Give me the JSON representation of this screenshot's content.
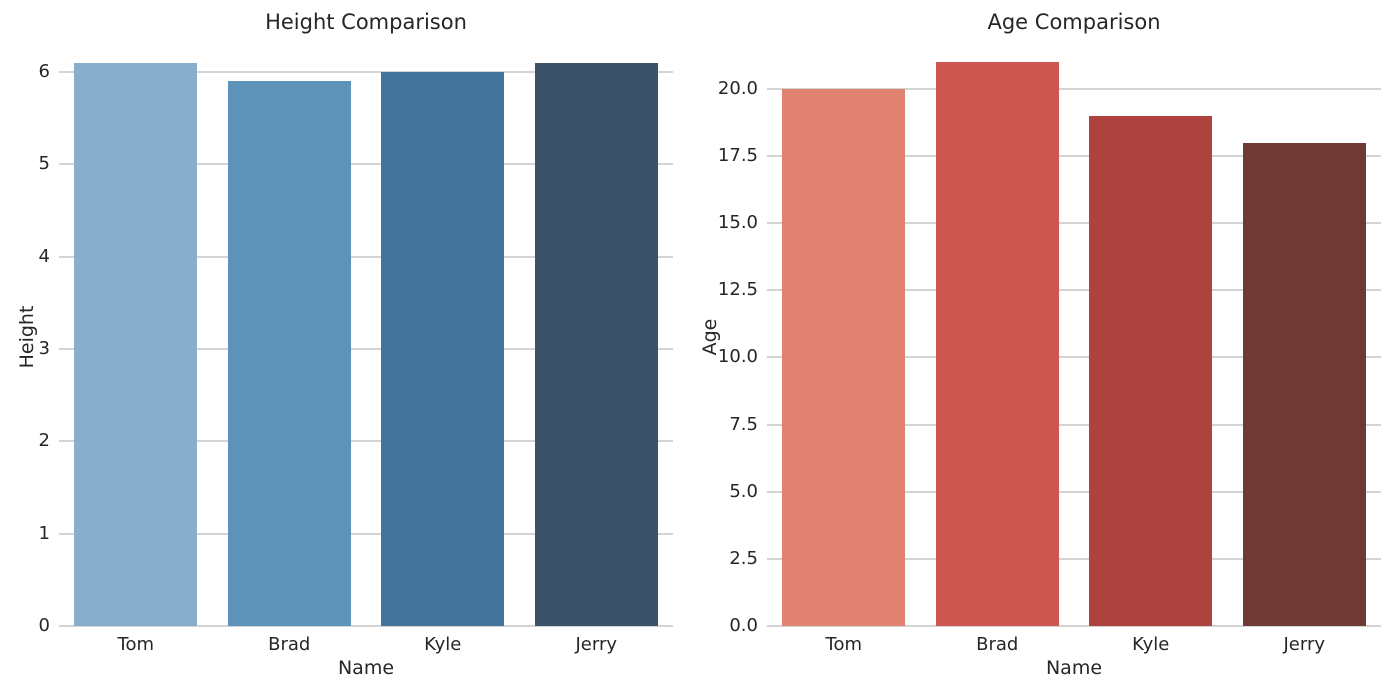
{
  "figure": {
    "background": "#ffffff",
    "text_color": "#262626",
    "grid_color": "#d4d4d4"
  },
  "chart_data": [
    {
      "type": "bar",
      "title": "Height Comparison",
      "xlabel": "Name",
      "ylabel": "Height",
      "categories": [
        "Tom",
        "Brad",
        "Kyle",
        "Jerry"
      ],
      "values": [
        6.1,
        5.9,
        6.0,
        6.1
      ],
      "bar_colors": [
        "#89aecb",
        "#5d92b9",
        "#45749a",
        "#3b5268"
      ],
      "yticks": [
        0,
        1,
        2,
        3,
        4,
        5,
        6
      ],
      "ytick_labels": [
        "0",
        "1",
        "2",
        "3",
        "4",
        "5",
        "6"
      ],
      "ylim": [
        0,
        6.27
      ],
      "grid": true,
      "legend": "none"
    },
    {
      "type": "bar",
      "title": "Age Comparison",
      "xlabel": "Name",
      "ylabel": "Age",
      "categories": [
        "Tom",
        "Brad",
        "Kyle",
        "Jerry"
      ],
      "values": [
        20,
        21,
        19,
        18
      ],
      "bar_colors": [
        "#e08172",
        "#cd5750",
        "#ae423e",
        "#6f3936"
      ],
      "yticks": [
        0,
        2.5,
        5,
        7.5,
        10,
        12.5,
        15,
        17.5,
        20
      ],
      "ytick_labels": [
        "0.0",
        "2.5",
        "5.0",
        "7.5",
        "10.0",
        "12.5",
        "15.0",
        "17.5",
        "20.0"
      ],
      "ylim": [
        0,
        21.56
      ],
      "grid": true,
      "legend": "none"
    }
  ]
}
